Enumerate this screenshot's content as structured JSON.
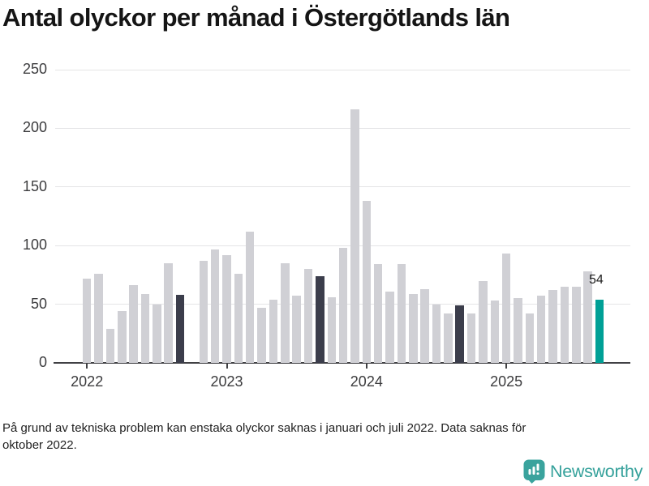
{
  "header": {
    "title": "Antal olyckor per månad i Östergötlands län"
  },
  "footer": {
    "note_lines": [
      "På grund av tekniska problem kan enstaka olyckor saknas i januari och juli 2022. Data saknas för",
      "oktober 2022."
    ]
  },
  "branding": {
    "name": "Newsworthy",
    "logo_icon": "bar-chart-speech-bubble-icon",
    "color": "#3aa39d"
  },
  "chart_data": {
    "type": "bar",
    "title": "Antal olyckor per månad i Östergötlands län",
    "xlabel": "",
    "ylabel": "",
    "ylim": [
      0,
      250
    ],
    "yticks": [
      0,
      50,
      100,
      150,
      200,
      250
    ],
    "grid": true,
    "x": [
      "2022-01",
      "2022-02",
      "2022-03",
      "2022-04",
      "2022-05",
      "2022-06",
      "2022-07",
      "2022-08",
      "2022-09",
      "2022-10",
      "2022-11",
      "2022-12",
      "2023-01",
      "2023-02",
      "2023-03",
      "2023-04",
      "2023-05",
      "2023-06",
      "2023-07",
      "2023-08",
      "2023-09",
      "2023-10",
      "2023-11",
      "2023-12",
      "2024-01",
      "2024-02",
      "2024-03",
      "2024-04",
      "2024-05",
      "2024-06",
      "2024-07",
      "2024-08",
      "2024-09",
      "2024-10",
      "2024-11",
      "2024-12",
      "2025-01",
      "2025-02",
      "2025-03",
      "2025-04",
      "2025-05",
      "2025-06",
      "2025-07",
      "2025-08",
      "2025-09"
    ],
    "values": [
      72,
      76,
      29,
      44,
      66,
      59,
      50,
      85,
      58,
      null,
      87,
      97,
      92,
      76,
      112,
      47,
      54,
      85,
      57,
      80,
      74,
      56,
      98,
      216,
      138,
      84,
      61,
      84,
      59,
      63,
      50,
      42,
      49,
      42,
      70,
      53,
      93,
      55,
      42,
      57,
      62,
      65,
      65,
      78,
      54
    ],
    "missing_months": [
      "2022-10"
    ],
    "highlight_dark_indices": [
      8,
      20,
      32
    ],
    "highlight_accent_index": 44,
    "annotation": {
      "index": 44,
      "text": "54"
    },
    "xticks": [
      {
        "index": 0,
        "label": "2022"
      },
      {
        "index": 12,
        "label": "2023"
      },
      {
        "index": 24,
        "label": "2024"
      },
      {
        "index": 36,
        "label": "2025"
      }
    ],
    "colors": {
      "bar": "#d0d0d5",
      "dark": "#3b3d4b",
      "accent": "#00a096",
      "gridline": "#e4e4e6",
      "axis": "#414144"
    },
    "legend": null
  }
}
